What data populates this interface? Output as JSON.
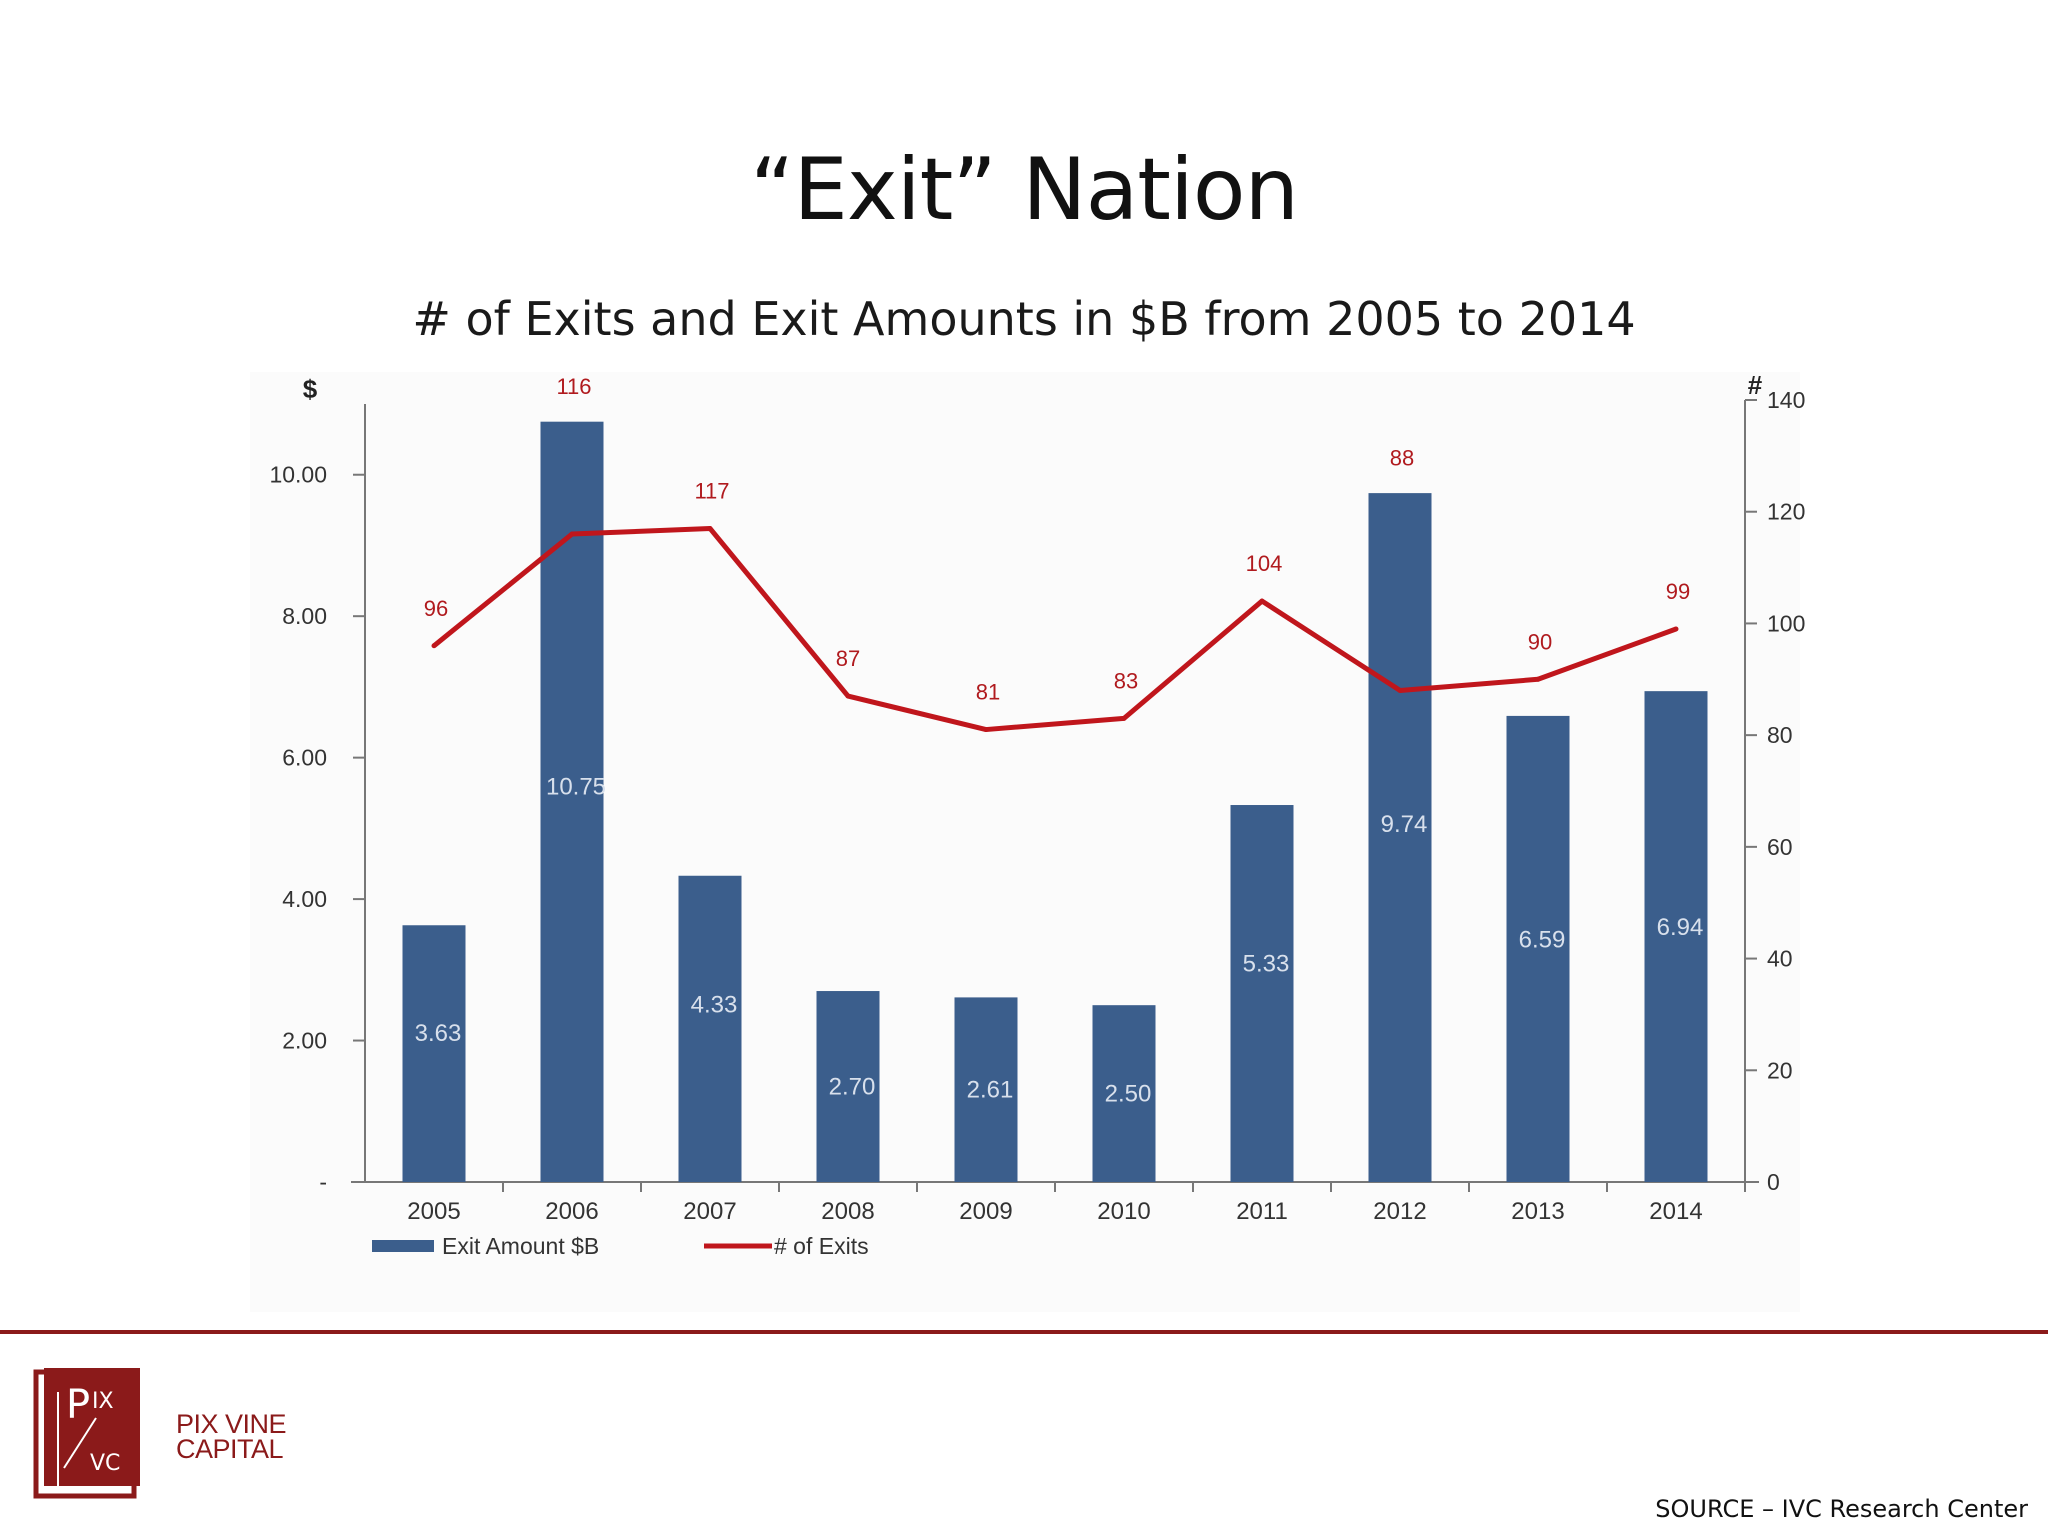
{
  "slide": {
    "title": "“Exit” Nation",
    "source": "SOURCE – IVC Research Center"
  },
  "brand": {
    "logo_top": "PIX",
    "logo_bottom": "VC",
    "name_line1": "PIX VINE",
    "name_line2": "CAPITAL",
    "color": "#8b1a1a"
  },
  "chart_data": {
    "type": "bar",
    "title": "# of Exits and Exit Amounts in $B from 2005 to 2014",
    "categories": [
      "2005",
      "2006",
      "2007",
      "2008",
      "2009",
      "2010",
      "2011",
      "2012",
      "2013",
      "2014"
    ],
    "left_axis": {
      "label": "$",
      "ylim": [
        0,
        11
      ],
      "ticks": [
        0,
        2,
        4,
        6,
        8,
        10
      ],
      "tick_labels": [
        "-",
        "2.00",
        "4.00",
        "6.00",
        "8.00",
        "10.00"
      ]
    },
    "right_axis": {
      "label": "#",
      "ylim": [
        0,
        140
      ],
      "ticks": [
        0,
        20,
        40,
        60,
        80,
        100,
        120,
        140
      ],
      "tick_labels": [
        "0",
        "20",
        "40",
        "60",
        "80",
        "100",
        "120",
        "140"
      ]
    },
    "series": [
      {
        "name": "Exit Amount $B",
        "type": "bar",
        "axis": "left",
        "color": "#3b5e8c",
        "values": [
          3.63,
          10.75,
          4.33,
          2.7,
          2.61,
          2.5,
          5.33,
          9.74,
          6.59,
          6.94
        ],
        "labels": [
          "3.63",
          "10.75",
          "4.33",
          "2.70",
          "2.61",
          "2.50",
          "5.33",
          "9.74",
          "6.59",
          "6.94"
        ]
      },
      {
        "name": "# of Exits",
        "type": "line",
        "axis": "right",
        "color": "#c0161c",
        "values": [
          96,
          116,
          117,
          87,
          81,
          83,
          104,
          88,
          90,
          99
        ],
        "labels": [
          "96",
          "116",
          "117",
          "87",
          "81",
          "83",
          "104",
          "88",
          "90",
          "99"
        ]
      }
    ],
    "legend": {
      "position": "bottom-left",
      "entries": [
        "Exit Amount $B",
        "# of Exits"
      ]
    },
    "grid": false
  }
}
